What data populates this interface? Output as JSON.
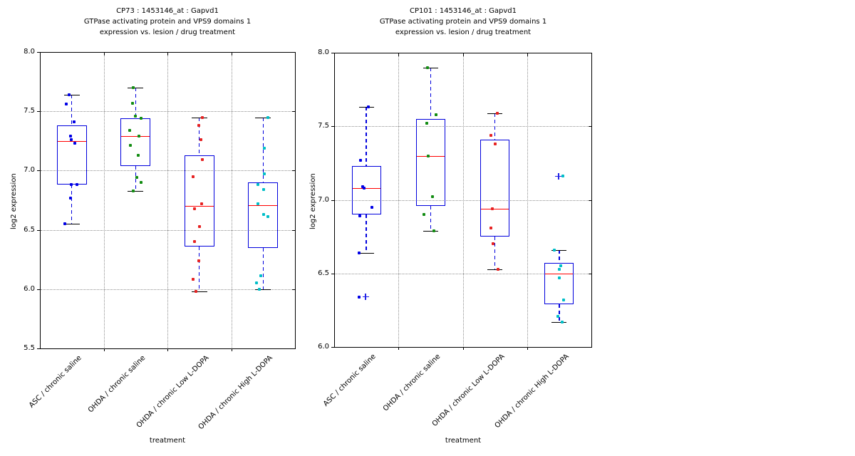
{
  "figure": {
    "background": "#ffffff",
    "xlabel": "treatment",
    "ylabel": "log2 expression"
  },
  "style": {
    "box_edge_color": "#0000dd",
    "median_color": "#ff0000",
    "whisker_color": "#0000dd",
    "cap_color": "#000000",
    "flier_color": "#2222e6",
    "grid_color": "#8f8f8f",
    "point_colors": {
      "ASC / chronic saline": "#0000e6",
      "OHDA / chronic saline": "#128c12",
      "OHDA / chronic Low L-DOPA": "#e62222",
      "OHDA / chronic High L-DOPA": "#00bec8"
    }
  },
  "chart_data": [
    {
      "type": "boxplot-scatter",
      "title_lines": [
        "CP73 : 1453146_at : Gapvd1",
        "GTPase activating protein and VPS9 domains 1",
        "expression vs. lesion / drug treatment"
      ],
      "xlabel": "treatment",
      "ylabel": "log2 expression",
      "ylim": [
        5.5,
        8.0
      ],
      "yticks": [
        5.5,
        6.0,
        6.5,
        7.0,
        7.5,
        8.0
      ],
      "grid": "dotted, horizontal at yticks and vertical between categories",
      "legend": "none",
      "categories": [
        "ASC / chronic saline",
        "OHDA / chronic saline",
        "OHDA / chronic Low L-DOPA",
        "OHDA / chronic High L-DOPA"
      ],
      "groups": [
        {
          "category": "ASC / chronic saline",
          "point_color": "#0000e6",
          "box": {
            "q1": 6.88,
            "median": 7.25,
            "q3": 7.38,
            "whisker_low": 6.55,
            "whisker_high": 7.64
          },
          "points": [
            {
              "v": 7.64,
              "dx": -4
            },
            {
              "v": 7.56,
              "dx": -8
            },
            {
              "v": 7.41,
              "dx": 3
            },
            {
              "v": 7.29,
              "dx": -2
            },
            {
              "v": 7.26,
              "dx": -1
            },
            {
              "v": 7.23,
              "dx": 4
            },
            {
              "v": 6.88,
              "dx": -1
            },
            {
              "v": 6.88,
              "dx": 7
            },
            {
              "v": 6.77,
              "dx": -2
            },
            {
              "v": 6.55,
              "dx": -10
            }
          ],
          "fliers": []
        },
        {
          "category": "OHDA / chronic saline",
          "point_color": "#128c12",
          "box": {
            "q1": 7.04,
            "median": 7.29,
            "q3": 7.44,
            "whisker_low": 6.83,
            "whisker_high": 7.7
          },
          "points": [
            {
              "v": 7.7,
              "dx": -3
            },
            {
              "v": 7.57,
              "dx": -4
            },
            {
              "v": 7.46,
              "dx": 0
            },
            {
              "v": 7.44,
              "dx": 8
            },
            {
              "v": 7.34,
              "dx": -8
            },
            {
              "v": 7.29,
              "dx": 5
            },
            {
              "v": 7.21,
              "dx": -7
            },
            {
              "v": 7.13,
              "dx": 4
            },
            {
              "v": 6.94,
              "dx": 2
            },
            {
              "v": 6.9,
              "dx": 8
            },
            {
              "v": 6.83,
              "dx": -3
            }
          ],
          "fliers": []
        },
        {
          "category": "OHDA / chronic Low L-DOPA",
          "point_color": "#e62222",
          "box": {
            "q1": 6.36,
            "median": 6.7,
            "q3": 7.13,
            "whisker_low": 5.98,
            "whisker_high": 7.45
          },
          "points": [
            {
              "v": 7.45,
              "dx": 4
            },
            {
              "v": 7.38,
              "dx": -1
            },
            {
              "v": 7.26,
              "dx": 2
            },
            {
              "v": 7.09,
              "dx": 4
            },
            {
              "v": 6.95,
              "dx": -9
            },
            {
              "v": 6.72,
              "dx": 3
            },
            {
              "v": 6.68,
              "dx": -7
            },
            {
              "v": 6.53,
              "dx": 0
            },
            {
              "v": 6.4,
              "dx": -7
            },
            {
              "v": 6.24,
              "dx": -1
            },
            {
              "v": 6.08,
              "dx": -9
            },
            {
              "v": 5.98,
              "dx": -5
            }
          ],
          "fliers": []
        },
        {
          "category": "OHDA / chronic High L-DOPA",
          "point_color": "#00bec8",
          "box": {
            "q1": 6.35,
            "median": 6.71,
            "q3": 6.9,
            "whisker_low": 6.0,
            "whisker_high": 7.45
          },
          "points": [
            {
              "v": 7.45,
              "dx": 7
            },
            {
              "v": 7.19,
              "dx": 2
            },
            {
              "v": 6.97,
              "dx": 2
            },
            {
              "v": 6.88,
              "dx": -7
            },
            {
              "v": 6.84,
              "dx": 1
            },
            {
              "v": 6.72,
              "dx": -7
            },
            {
              "v": 6.63,
              "dx": 1
            },
            {
              "v": 6.61,
              "dx": 7
            },
            {
              "v": 6.11,
              "dx": -3
            },
            {
              "v": 6.05,
              "dx": -9
            },
            {
              "v": 6.0,
              "dx": -5
            }
          ],
          "fliers": []
        }
      ]
    },
    {
      "type": "boxplot-scatter",
      "title_lines": [
        "CP101 : 1453146_at : Gapvd1",
        "GTPase activating protein and VPS9 domains 1",
        "expression vs. lesion / drug treatment"
      ],
      "xlabel": "treatment",
      "ylabel": "log2 expression",
      "ylim": [
        6.0,
        8.0
      ],
      "yticks": [
        6.0,
        6.5,
        7.0,
        7.5,
        8.0
      ],
      "grid": "dotted, horizontal at yticks and vertical between categories",
      "legend": "none",
      "categories": [
        "ASC / chronic saline",
        "OHDA / chronic saline",
        "OHDA / chronic Low L-DOPA",
        "OHDA / chronic High L-DOPA"
      ],
      "groups": [
        {
          "category": "ASC / chronic saline",
          "point_color": "#0000e6",
          "box": {
            "q1": 6.9,
            "median": 7.08,
            "q3": 7.23,
            "whisker_low": 6.64,
            "whisker_high": 7.63
          },
          "points": [
            {
              "v": 7.63,
              "dx": 3
            },
            {
              "v": 7.27,
              "dx": -8
            },
            {
              "v": 7.09,
              "dx": -5
            },
            {
              "v": 7.08,
              "dx": -3
            },
            {
              "v": 6.95,
              "dx": 8
            },
            {
              "v": 6.89,
              "dx": -9
            },
            {
              "v": 6.64,
              "dx": -10
            },
            {
              "v": 6.34,
              "dx": -10
            }
          ],
          "fliers": [
            {
              "v": 6.34,
              "dx": -1
            }
          ]
        },
        {
          "category": "OHDA / chronic saline",
          "point_color": "#128c12",
          "box": {
            "q1": 6.96,
            "median": 7.3,
            "q3": 7.55,
            "whisker_low": 6.79,
            "whisker_high": 7.9
          },
          "points": [
            {
              "v": 7.9,
              "dx": -4
            },
            {
              "v": 7.58,
              "dx": 8
            },
            {
              "v": 7.52,
              "dx": -5
            },
            {
              "v": 7.3,
              "dx": -3
            },
            {
              "v": 7.02,
              "dx": 3
            },
            {
              "v": 6.9,
              "dx": -9
            },
            {
              "v": 6.79,
              "dx": 5
            }
          ],
          "fliers": []
        },
        {
          "category": "OHDA / chronic Low L-DOPA",
          "point_color": "#e62222",
          "box": {
            "q1": 6.75,
            "median": 6.94,
            "q3": 7.41,
            "whisker_low": 6.53,
            "whisker_high": 7.59
          },
          "points": [
            {
              "v": 7.59,
              "dx": 3
            },
            {
              "v": 7.44,
              "dx": -6
            },
            {
              "v": 7.38,
              "dx": 0
            },
            {
              "v": 6.94,
              "dx": -4
            },
            {
              "v": 6.81,
              "dx": -6
            },
            {
              "v": 6.7,
              "dx": -3
            },
            {
              "v": 6.53,
              "dx": 4
            }
          ],
          "fliers": []
        },
        {
          "category": "OHDA / chronic High L-DOPA",
          "point_color": "#00bec8",
          "box": {
            "q1": 6.29,
            "median": 6.5,
            "q3": 6.57,
            "whisker_low": 6.17,
            "whisker_high": 6.66
          },
          "points": [
            {
              "v": 7.16,
              "dx": 5
            },
            {
              "v": 6.66,
              "dx": -7
            },
            {
              "v": 6.55,
              "dx": 2
            },
            {
              "v": 6.53,
              "dx": 0
            },
            {
              "v": 6.47,
              "dx": 0
            },
            {
              "v": 6.32,
              "dx": 6
            },
            {
              "v": 6.21,
              "dx": -2
            },
            {
              "v": 6.17,
              "dx": 4
            }
          ],
          "fliers": [
            {
              "v": 7.16,
              "dx": -1
            }
          ]
        }
      ]
    }
  ]
}
